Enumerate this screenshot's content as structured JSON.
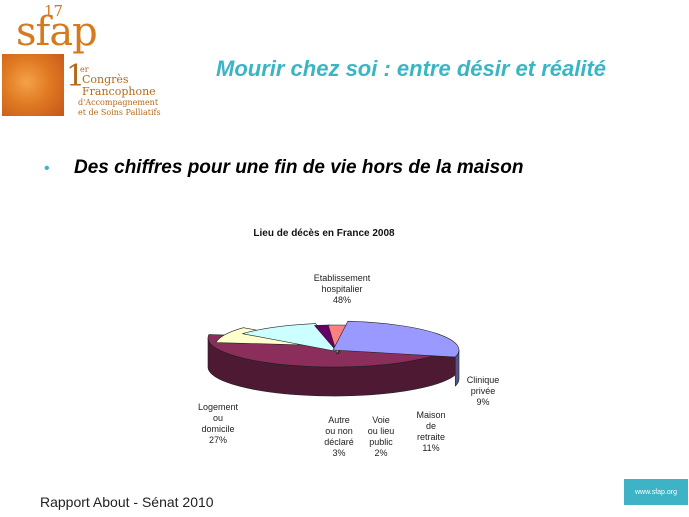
{
  "header": {
    "logo": {
      "mark": "sfap",
      "edition": "17",
      "congress_ordinal": "1",
      "congress_ordinal_sup": "er",
      "congress_line1": "Congrès",
      "congress_line2": "Francophone",
      "congress_line3": "d'Accompagnement",
      "congress_line4": "et de Soins Palliatifs"
    },
    "title": "Mourir chez soi :  entre désir et réalité"
  },
  "bullet": {
    "text": "Des chiffres pour une fin de vie hors de la maison"
  },
  "chart_data": {
    "type": "pie",
    "title": "Lieu de décès en  France 2008",
    "slices": [
      {
        "label_lines": [
          "Etablissement",
          "hospitalier"
        ],
        "pct_label": "48%",
        "value": 48,
        "color": "#8c2e5c"
      },
      {
        "label_lines": [
          "Clinique",
          "privée"
        ],
        "pct_label": "9%",
        "value": 9,
        "color": "#ffffcc"
      },
      {
        "label_lines": [
          "Maison",
          "de",
          "retraite"
        ],
        "pct_label": "11%",
        "value": 11,
        "color": "#ccffff"
      },
      {
        "label_lines": [
          "Voie",
          "ou lieu",
          "public"
        ],
        "pct_label": "2%",
        "value": 2,
        "color": "#660066"
      },
      {
        "label_lines": [
          "Autre",
          "ou non",
          "déclaré"
        ],
        "pct_label": "3%",
        "value": 3,
        "color": "#ff8080"
      },
      {
        "label_lines": [
          "Logement",
          "ou",
          "domicile"
        ],
        "pct_label": "27%",
        "value": 27,
        "color": "#9999ff"
      }
    ],
    "style": "3d-exploded"
  },
  "footer": {
    "source": "Rapport About - Sénat 2010",
    "url": "www.sfap.org"
  }
}
